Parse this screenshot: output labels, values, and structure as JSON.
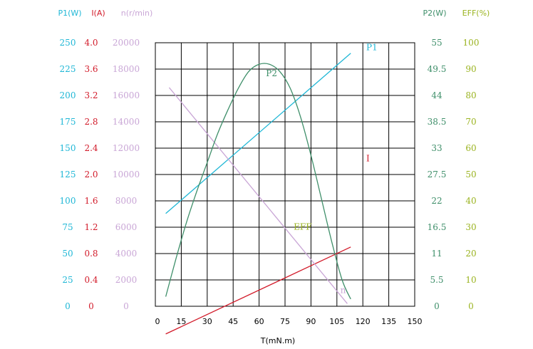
{
  "chart_data": {
    "type": "line",
    "xlabel": "T(mN.m)",
    "xlim": [
      0,
      150
    ],
    "x_ticks": [
      "0",
      "15",
      "30",
      "45",
      "60",
      "75",
      "90",
      "105",
      "120",
      "135",
      "150"
    ],
    "colors": {
      "p1": "#1fb7d6",
      "i": "#d21b2a",
      "n": "#c9a6d6",
      "p2": "#3f8f6a",
      "eff": "#9ab31f",
      "grid": "#000000"
    },
    "axes": {
      "p1": {
        "header": "P1(W)",
        "ylim": [
          0,
          250
        ],
        "ticks": [
          "250",
          "225",
          "200",
          "175",
          "150",
          "125",
          "100",
          "75",
          "50",
          "25",
          "0"
        ]
      },
      "i": {
        "header": "I(A)",
        "ylim": [
          0,
          4.0
        ],
        "ticks": [
          "4.0",
          "3.6",
          "3.2",
          "2.8",
          "2.4",
          "2.0",
          "1.6",
          "1.2",
          "0.8",
          "0.4",
          "0"
        ]
      },
      "n": {
        "header": "n(r/min)",
        "ylim": [
          0,
          20000
        ],
        "ticks": [
          "20000",
          "18000",
          "16000",
          "14000",
          "12000",
          "10000",
          "8000",
          "6000",
          "4000",
          "2000",
          "0"
        ]
      },
      "p2": {
        "header": "P2(W)",
        "ylim": [
          0,
          55
        ],
        "ticks": [
          "55",
          "49.5",
          "44",
          "38.5",
          "33",
          "27.5",
          "22",
          "16.5",
          "11",
          "5.5",
          "0"
        ]
      },
      "eff": {
        "header": "EFF(%)",
        "ylim": [
          0,
          100
        ],
        "ticks": [
          "100",
          "90",
          "80",
          "70",
          "60",
          "50",
          "40",
          "30",
          "20",
          "10",
          "0"
        ]
      }
    },
    "series": [
      {
        "name": "P1",
        "axis": "p1",
        "color_key": "p1",
        "label_at": [
          122,
          243
        ],
        "x": [
          6,
          113
        ],
        "y": [
          88,
          240
        ]
      },
      {
        "name": "I",
        "axis": "i",
        "color_key": "i",
        "label_at": [
          122,
          2.2
        ],
        "x": [
          6,
          113
        ],
        "y": [
          -0.42,
          0.9
        ]
      },
      {
        "name": "n",
        "axis": "n",
        "color_key": "n",
        "label_at": [
          107,
          1000
        ],
        "x": [
          8,
          111
        ],
        "y": [
          16600,
          200
        ]
      },
      {
        "name": "P2",
        "axis": "p2",
        "color_key": "p2",
        "label_at": [
          64,
          48
        ],
        "x": [
          6,
          12,
          18,
          24,
          30,
          36,
          42,
          48,
          54,
          60,
          66,
          72,
          78,
          84,
          90,
          96,
          102,
          108,
          113
        ],
        "y": [
          2,
          10,
          17.5,
          24,
          30,
          36,
          41,
          45.5,
          49,
          50.5,
          50.5,
          49,
          45.5,
          39.5,
          31.5,
          22.5,
          13.5,
          5.5,
          1.5
        ]
      },
      {
        "name": "EFF",
        "axis": "eff",
        "color_key": "eff",
        "label_at": [
          80,
          29
        ],
        "x": [],
        "y": []
      }
    ]
  }
}
